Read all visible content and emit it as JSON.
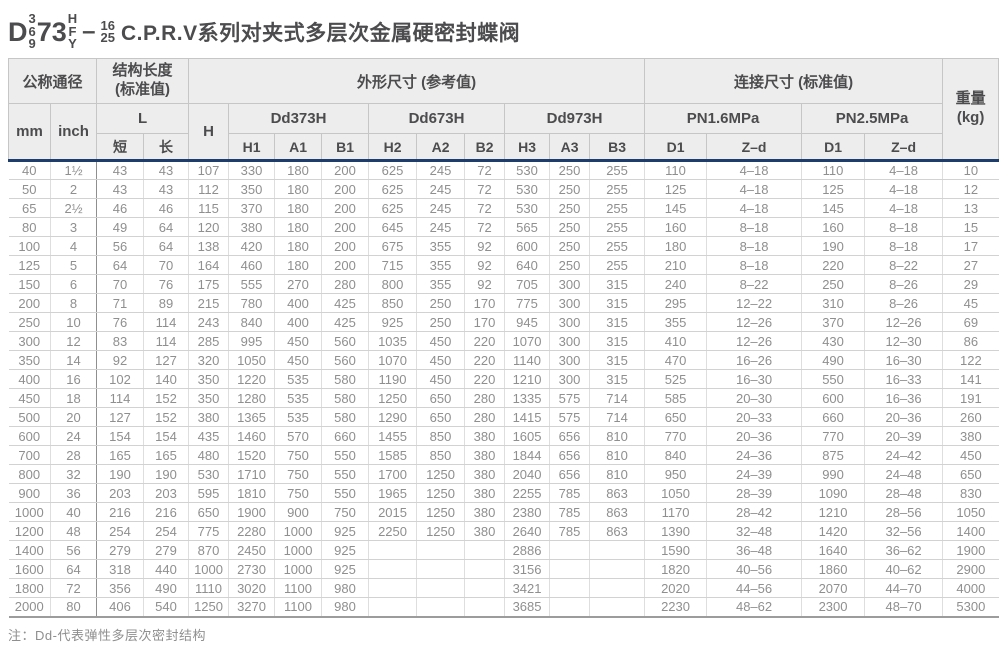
{
  "title": {
    "model_prefix": "D",
    "model_stack1": [
      "3",
      "6",
      "9"
    ],
    "model_mid": "73",
    "model_stack2": [
      "H",
      "F",
      "Y"
    ],
    "model_dash": "–",
    "model_stack3": [
      "16",
      "25"
    ],
    "series_name": "C.P.R.V系列对夹式多层次金属硬密封蝶阀"
  },
  "table": {
    "header": {
      "nominal_diameter": "公称通径",
      "structural_length_line1": "结构长度",
      "structural_length_line2": "(标准值)",
      "overall_dims": "外形尺寸 (参考值)",
      "connection_dims": "连接尺寸 (标准值)",
      "weight_line1": "重量",
      "weight_line2": "(kg)",
      "mm": "mm",
      "inch": "inch",
      "L": "L",
      "short": "短",
      "long": "长",
      "H": "H",
      "dd373h": "Dd373H",
      "dd673h": "Dd673H",
      "dd973h": "Dd973H",
      "pn16": "PN1.6MPa",
      "pn25": "PN2.5MPa",
      "sub": [
        "H1",
        "A1",
        "B1",
        "H2",
        "A2",
        "B2",
        "H3",
        "A3",
        "B3"
      ],
      "d1_pn16": "D1",
      "zd_pn16": "Z–d",
      "d1_pn25": "D1",
      "zd_pn25": "Z–d"
    },
    "rows": [
      [
        "40",
        "1½",
        "43",
        "43",
        "107",
        "330",
        "180",
        "200",
        "625",
        "245",
        "72",
        "530",
        "250",
        "255",
        "110",
        "4–18",
        "110",
        "4–18",
        "10"
      ],
      [
        "50",
        "2",
        "43",
        "43",
        "112",
        "350",
        "180",
        "200",
        "625",
        "245",
        "72",
        "530",
        "250",
        "255",
        "125",
        "4–18",
        "125",
        "4–18",
        "12"
      ],
      [
        "65",
        "2½",
        "46",
        "46",
        "115",
        "370",
        "180",
        "200",
        "625",
        "245",
        "72",
        "530",
        "250",
        "255",
        "145",
        "4–18",
        "145",
        "4–18",
        "13"
      ],
      [
        "80",
        "3",
        "49",
        "64",
        "120",
        "380",
        "180",
        "200",
        "645",
        "245",
        "72",
        "565",
        "250",
        "255",
        "160",
        "8–18",
        "160",
        "8–18",
        "15"
      ],
      [
        "100",
        "4",
        "56",
        "64",
        "138",
        "420",
        "180",
        "200",
        "675",
        "355",
        "92",
        "600",
        "250",
        "255",
        "180",
        "8–18",
        "190",
        "8–18",
        "17"
      ],
      [
        "125",
        "5",
        "64",
        "70",
        "164",
        "460",
        "180",
        "200",
        "715",
        "355",
        "92",
        "640",
        "250",
        "255",
        "210",
        "8–18",
        "220",
        "8–22",
        "27"
      ],
      [
        "150",
        "6",
        "70",
        "76",
        "175",
        "555",
        "270",
        "280",
        "800",
        "355",
        "92",
        "705",
        "300",
        "315",
        "240",
        "8–22",
        "250",
        "8–26",
        "29"
      ],
      [
        "200",
        "8",
        "71",
        "89",
        "215",
        "780",
        "400",
        "425",
        "850",
        "250",
        "170",
        "775",
        "300",
        "315",
        "295",
        "12–22",
        "310",
        "8–26",
        "45"
      ],
      [
        "250",
        "10",
        "76",
        "114",
        "243",
        "840",
        "400",
        "425",
        "925",
        "250",
        "170",
        "945",
        "300",
        "315",
        "355",
        "12–26",
        "370",
        "12–26",
        "69"
      ],
      [
        "300",
        "12",
        "83",
        "114",
        "285",
        "995",
        "450",
        "560",
        "1035",
        "450",
        "220",
        "1070",
        "300",
        "315",
        "410",
        "12–26",
        "430",
        "12–30",
        "86"
      ],
      [
        "350",
        "14",
        "92",
        "127",
        "320",
        "1050",
        "450",
        "560",
        "1070",
        "450",
        "220",
        "1140",
        "300",
        "315",
        "470",
        "16–26",
        "490",
        "16–30",
        "122"
      ],
      [
        "400",
        "16",
        "102",
        "140",
        "350",
        "1220",
        "535",
        "580",
        "1190",
        "450",
        "220",
        "1210",
        "300",
        "315",
        "525",
        "16–30",
        "550",
        "16–33",
        "141"
      ],
      [
        "450",
        "18",
        "114",
        "152",
        "350",
        "1280",
        "535",
        "580",
        "1250",
        "650",
        "280",
        "1335",
        "575",
        "714",
        "585",
        "20–30",
        "600",
        "16–36",
        "191"
      ],
      [
        "500",
        "20",
        "127",
        "152",
        "380",
        "1365",
        "535",
        "580",
        "1290",
        "650",
        "280",
        "1415",
        "575",
        "714",
        "650",
        "20–33",
        "660",
        "20–36",
        "260"
      ],
      [
        "600",
        "24",
        "154",
        "154",
        "435",
        "1460",
        "570",
        "660",
        "1455",
        "850",
        "380",
        "1605",
        "656",
        "810",
        "770",
        "20–36",
        "770",
        "20–39",
        "380"
      ],
      [
        "700",
        "28",
        "165",
        "165",
        "480",
        "1520",
        "750",
        "550",
        "1585",
        "850",
        "380",
        "1844",
        "656",
        "810",
        "840",
        "24–36",
        "875",
        "24–42",
        "450"
      ],
      [
        "800",
        "32",
        "190",
        "190",
        "530",
        "1710",
        "750",
        "550",
        "1700",
        "1250",
        "380",
        "2040",
        "656",
        "810",
        "950",
        "24–39",
        "990",
        "24–48",
        "650"
      ],
      [
        "900",
        "36",
        "203",
        "203",
        "595",
        "1810",
        "750",
        "550",
        "1965",
        "1250",
        "380",
        "2255",
        "785",
        "863",
        "1050",
        "28–39",
        "1090",
        "28–48",
        "830"
      ],
      [
        "1000",
        "40",
        "216",
        "216",
        "650",
        "1900",
        "900",
        "750",
        "2015",
        "1250",
        "380",
        "2380",
        "785",
        "863",
        "1170",
        "28–42",
        "1210",
        "28–56",
        "1050"
      ],
      [
        "1200",
        "48",
        "254",
        "254",
        "775",
        "2280",
        "1000",
        "925",
        "2250",
        "1250",
        "380",
        "2640",
        "785",
        "863",
        "1390",
        "32–48",
        "1420",
        "32–56",
        "1400"
      ],
      [
        "1400",
        "56",
        "279",
        "279",
        "870",
        "2450",
        "1000",
        "925",
        "",
        "",
        "",
        "2886",
        "",
        "",
        "1590",
        "36–48",
        "1640",
        "36–62",
        "1900"
      ],
      [
        "1600",
        "64",
        "318",
        "440",
        "1000",
        "2730",
        "1000",
        "925",
        "",
        "",
        "",
        "3156",
        "",
        "",
        "1820",
        "40–56",
        "1860",
        "40–62",
        "2900"
      ],
      [
        "1800",
        "72",
        "356",
        "490",
        "1110",
        "3020",
        "1100",
        "980",
        "",
        "",
        "",
        "3421",
        "",
        "",
        "2020",
        "44–56",
        "2070",
        "44–70",
        "4000"
      ],
      [
        "2000",
        "80",
        "406",
        "540",
        "1250",
        "3270",
        "1100",
        "980",
        "",
        "",
        "",
        "3685",
        "",
        "",
        "2230",
        "48–62",
        "2300",
        "48–70",
        "5300"
      ]
    ]
  },
  "note": "注：Dd-代表弹性多层次密封结构",
  "colors": {
    "navy_divider": "#1d3e6c",
    "header_bg": "#ededed",
    "header_text": "#4c4c4e",
    "body_text": "#8f8f8f"
  }
}
